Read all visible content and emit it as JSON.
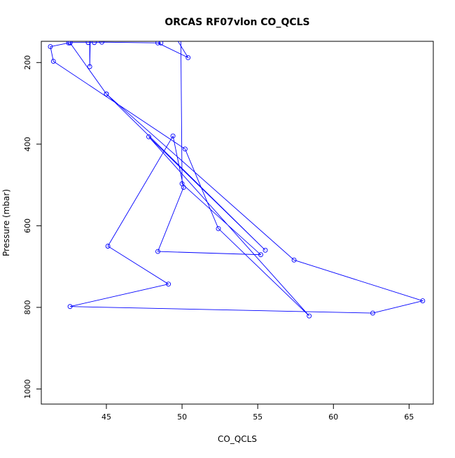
{
  "chart_data": {
    "type": "line",
    "title": "ORCAS RF07vlon CO_QCLS",
    "xlabel": "CO_QCLS",
    "ylabel": "Pressure (mbar)",
    "xlim": [
      40.7,
      66.6
    ],
    "ylim": [
      1037,
      148
    ],
    "y_reversed": true,
    "x_ticks": [
      45,
      50,
      55,
      60,
      65
    ],
    "y_ticks": [
      200,
      400,
      600,
      800,
      1000
    ],
    "series_color": "#0000ff",
    "marker": "open-circle",
    "points": [
      {
        "x": 48.6,
        "y": 80
      },
      {
        "x": 50.4,
        "y": 188
      },
      {
        "x": 48.4,
        "y": 152
      },
      {
        "x": 48.6,
        "y": 152
      },
      {
        "x": 44.7,
        "y": 150
      },
      {
        "x": 44.2,
        "y": 151
      },
      {
        "x": 43.8,
        "y": 151
      },
      {
        "x": 42.6,
        "y": 151
      },
      {
        "x": 42.5,
        "y": 152
      },
      {
        "x": 41.3,
        "y": 161
      },
      {
        "x": 41.5,
        "y": 197
      },
      {
        "x": 50.2,
        "y": 412
      },
      {
        "x": 52.4,
        "y": 607
      },
      {
        "x": 58.4,
        "y": 821
      },
      {
        "x": 47.8,
        "y": 382
      },
      {
        "x": 55.5,
        "y": 660
      },
      {
        "x": 45.0,
        "y": 277
      },
      {
        "x": 42.6,
        "y": 152
      },
      {
        "x": 45.0,
        "y": 277
      },
      {
        "x": 57.4,
        "y": 684
      },
      {
        "x": 65.9,
        "y": 784
      },
      {
        "x": 62.6,
        "y": 814
      },
      {
        "x": 42.6,
        "y": 798
      },
      {
        "x": 49.1,
        "y": 743
      },
      {
        "x": 45.1,
        "y": 650
      },
      {
        "x": 49.4,
        "y": 380
      },
      {
        "x": 50.1,
        "y": 506
      },
      {
        "x": 48.4,
        "y": 663
      },
      {
        "x": 55.2,
        "y": 671
      },
      {
        "x": 50.0,
        "y": 497
      },
      {
        "x": 49.9,
        "y": 60
      },
      {
        "x": 44.0,
        "y": 20
      },
      {
        "x": 43.9,
        "y": 210
      },
      {
        "x": 43.9,
        "y": 20
      }
    ]
  }
}
